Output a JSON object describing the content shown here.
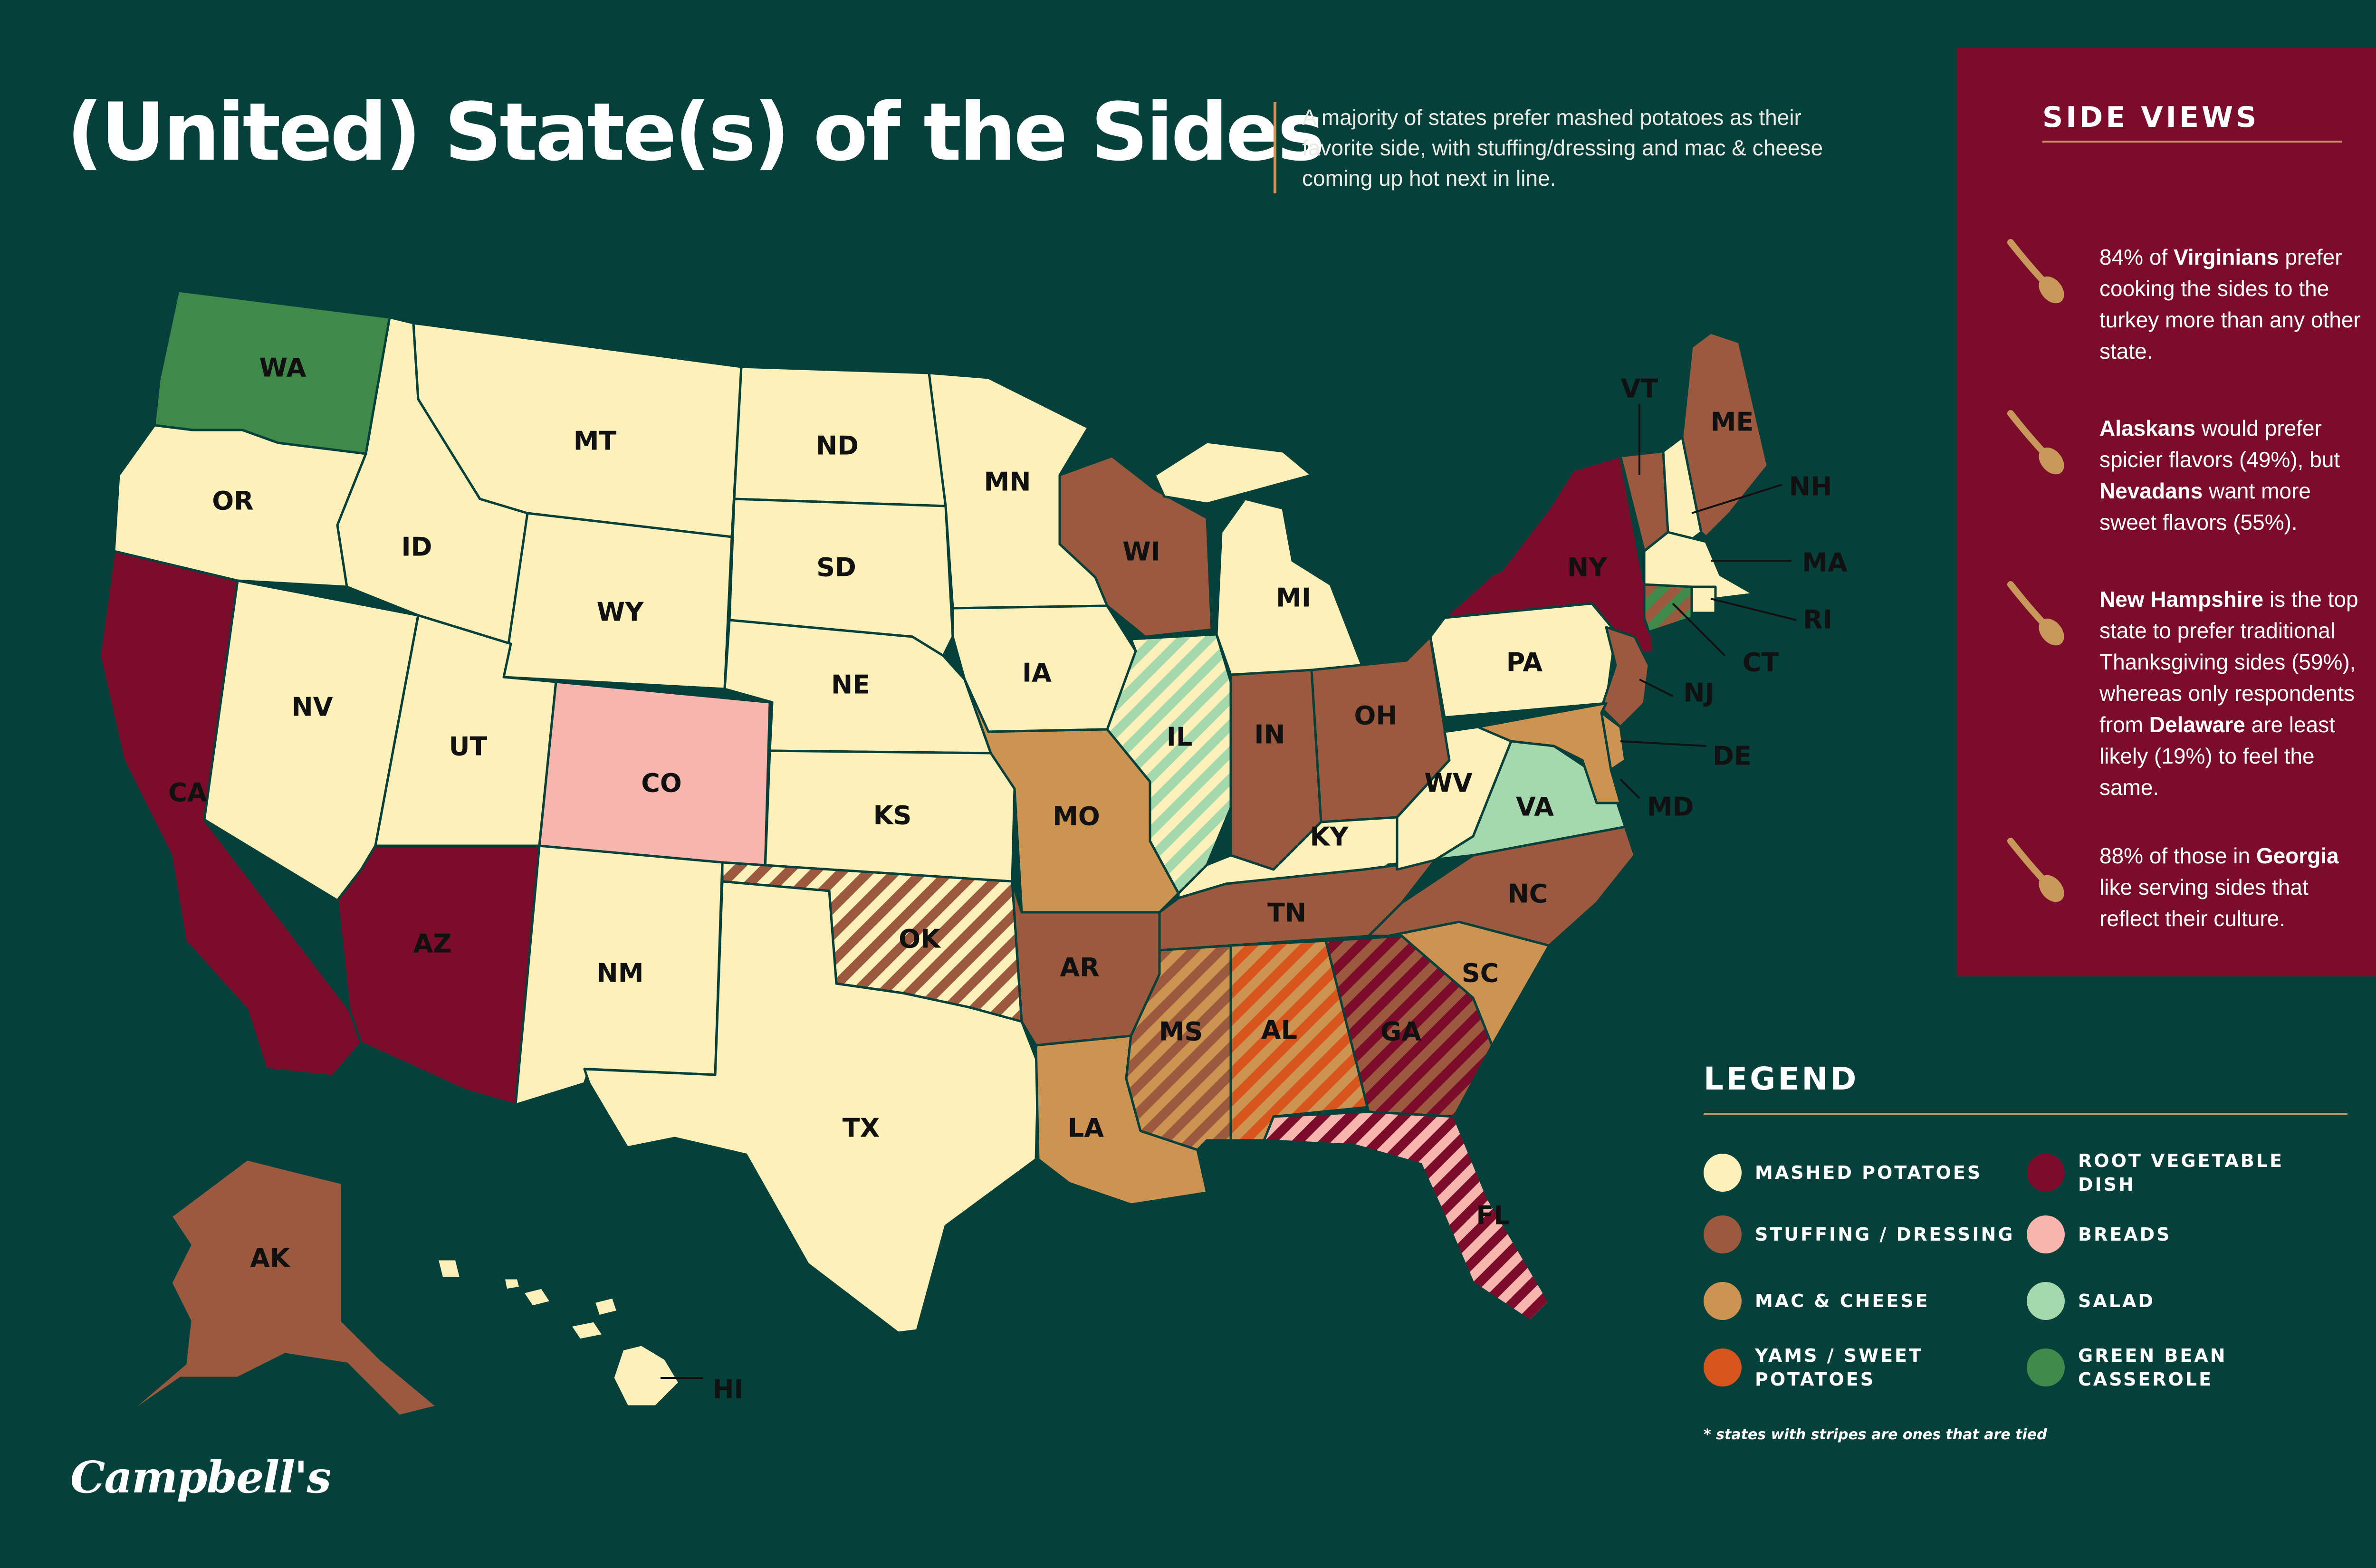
{
  "colors": {
    "background": "#06403b",
    "panel": "#7b0d2b",
    "gold": "#c8985a",
    "mashed_potatoes": "#fdf0b8",
    "stuffing_dressing": "#9b5a3e",
    "mac_and_cheese": "#cc9450",
    "yams_sweet_potatoes": "#d8561d",
    "root_vegetable_dish": "#7b0d2b",
    "breads": "#f8b5ad",
    "salad": "#a6d8ad",
    "green_bean_casserole": "#3f8a4a"
  },
  "header": {
    "title": "(United) State(s) of the Sides",
    "intro": "A majority of states prefer mashed potatoes as their favorite side, with stuffing/dressing and mac & cheese coming up hot next in line."
  },
  "side_views": {
    "title": "SIDE VIEWS",
    "icon": "spoon-icon",
    "facts": [
      {
        "parts": [
          {
            "text": "84% of "
          },
          {
            "text": "Virginians",
            "bold": true
          },
          {
            "text": " prefer cooking the sides to the turkey more than any other state."
          }
        ]
      },
      {
        "parts": [
          {
            "text": "Alaskans",
            "bold": true
          },
          {
            "text": " would prefer spicier flavors (49%), but "
          },
          {
            "text": "Nevadans",
            "bold": true
          },
          {
            "text": " want more sweet flavors (55%)."
          }
        ]
      },
      {
        "parts": [
          {
            "text": "New Hampshire",
            "bold": true
          },
          {
            "text": " is the top state to prefer traditional Thanksgiving sides (59%), whereas only respondents from "
          },
          {
            "text": "Delaware",
            "bold": true
          },
          {
            "text": " are least likely (19%) to feel the same."
          }
        ]
      },
      {
        "parts": [
          {
            "text": "88% of those in "
          },
          {
            "text": "Georgia",
            "bold": true
          },
          {
            "text": " like serving sides that reflect their culture."
          }
        ]
      }
    ]
  },
  "legend": {
    "title": "LEGEND",
    "items": [
      {
        "key": "mashed_potatoes",
        "label": "MASHED POTATOES"
      },
      {
        "key": "stuffing_dressing",
        "label": "STUFFING / DRESSING"
      },
      {
        "key": "mac_and_cheese",
        "label": "MAC & CHEESE"
      },
      {
        "key": "yams_sweet_potatoes",
        "label": "YAMS / SWEET POTATOES"
      },
      {
        "key": "root_vegetable_dish",
        "label": "ROOT VEGETABLE DISH"
      },
      {
        "key": "breads",
        "label": "BREADS"
      },
      {
        "key": "salad",
        "label": "SALAD"
      },
      {
        "key": "green_bean_casserole",
        "label": "GREEN BEAN CASSEROLE"
      }
    ],
    "footnote": "* states with stripes are ones that are tied"
  },
  "map": {
    "states": [
      {
        "abbr": "WA",
        "side": "green_bean_casserole"
      },
      {
        "abbr": "OR",
        "side": "mashed_potatoes"
      },
      {
        "abbr": "CA",
        "side": "root_vegetable_dish"
      },
      {
        "abbr": "NV",
        "side": "mashed_potatoes"
      },
      {
        "abbr": "ID",
        "side": "mashed_potatoes"
      },
      {
        "abbr": "MT",
        "side": "mashed_potatoes"
      },
      {
        "abbr": "WY",
        "side": "mashed_potatoes"
      },
      {
        "abbr": "UT",
        "side": "mashed_potatoes"
      },
      {
        "abbr": "AZ",
        "side": "root_vegetable_dish"
      },
      {
        "abbr": "CO",
        "side": "breads"
      },
      {
        "abbr": "NM",
        "side": "mashed_potatoes"
      },
      {
        "abbr": "ND",
        "side": "mashed_potatoes"
      },
      {
        "abbr": "SD",
        "side": "mashed_potatoes"
      },
      {
        "abbr": "NE",
        "side": "mashed_potatoes"
      },
      {
        "abbr": "KS",
        "side": "mashed_potatoes"
      },
      {
        "abbr": "OK",
        "side": "stuffing_dressing",
        "tied_with": "mashed_potatoes"
      },
      {
        "abbr": "TX",
        "side": "mashed_potatoes"
      },
      {
        "abbr": "MN",
        "side": "mashed_potatoes"
      },
      {
        "abbr": "IA",
        "side": "mashed_potatoes"
      },
      {
        "abbr": "MO",
        "side": "mac_and_cheese"
      },
      {
        "abbr": "AR",
        "side": "stuffing_dressing"
      },
      {
        "abbr": "LA",
        "side": "mac_and_cheese"
      },
      {
        "abbr": "WI",
        "side": "stuffing_dressing"
      },
      {
        "abbr": "IL",
        "side": "salad",
        "tied_with": "mashed_potatoes"
      },
      {
        "abbr": "MI",
        "side": "mashed_potatoes"
      },
      {
        "abbr": "IN",
        "side": "stuffing_dressing"
      },
      {
        "abbr": "OH",
        "side": "stuffing_dressing"
      },
      {
        "abbr": "KY",
        "side": "mashed_potatoes"
      },
      {
        "abbr": "TN",
        "side": "stuffing_dressing"
      },
      {
        "abbr": "MS",
        "side": "stuffing_dressing",
        "tied_with": "mac_and_cheese"
      },
      {
        "abbr": "AL",
        "side": "yams_sweet_potatoes",
        "tied_with": "mac_and_cheese"
      },
      {
        "abbr": "GA",
        "side": "root_vegetable_dish",
        "tied_with": "stuffing_dressing"
      },
      {
        "abbr": "FL",
        "side": "root_vegetable_dish",
        "tied_with": "breads"
      },
      {
        "abbr": "SC",
        "side": "mac_and_cheese"
      },
      {
        "abbr": "NC",
        "side": "stuffing_dressing"
      },
      {
        "abbr": "VA",
        "side": "salad"
      },
      {
        "abbr": "WV",
        "side": "mashed_potatoes"
      },
      {
        "abbr": "PA",
        "side": "mashed_potatoes"
      },
      {
        "abbr": "NY",
        "side": "root_vegetable_dish"
      },
      {
        "abbr": "VT",
        "side": "stuffing_dressing"
      },
      {
        "abbr": "NH",
        "side": "mashed_potatoes"
      },
      {
        "abbr": "ME",
        "side": "stuffing_dressing"
      },
      {
        "abbr": "MA",
        "side": "mashed_potatoes"
      },
      {
        "abbr": "RI",
        "side": "mashed_potatoes"
      },
      {
        "abbr": "CT",
        "side": "green_bean_casserole",
        "tied_with": "stuffing_dressing"
      },
      {
        "abbr": "NJ",
        "side": "stuffing_dressing"
      },
      {
        "abbr": "DE",
        "side": "mac_and_cheese"
      },
      {
        "abbr": "MD",
        "side": "mac_and_cheese"
      },
      {
        "abbr": "AK",
        "side": "stuffing_dressing"
      },
      {
        "abbr": "HI",
        "side": "mashed_potatoes"
      }
    ]
  },
  "brand": {
    "logo_text": "Campbell's"
  }
}
